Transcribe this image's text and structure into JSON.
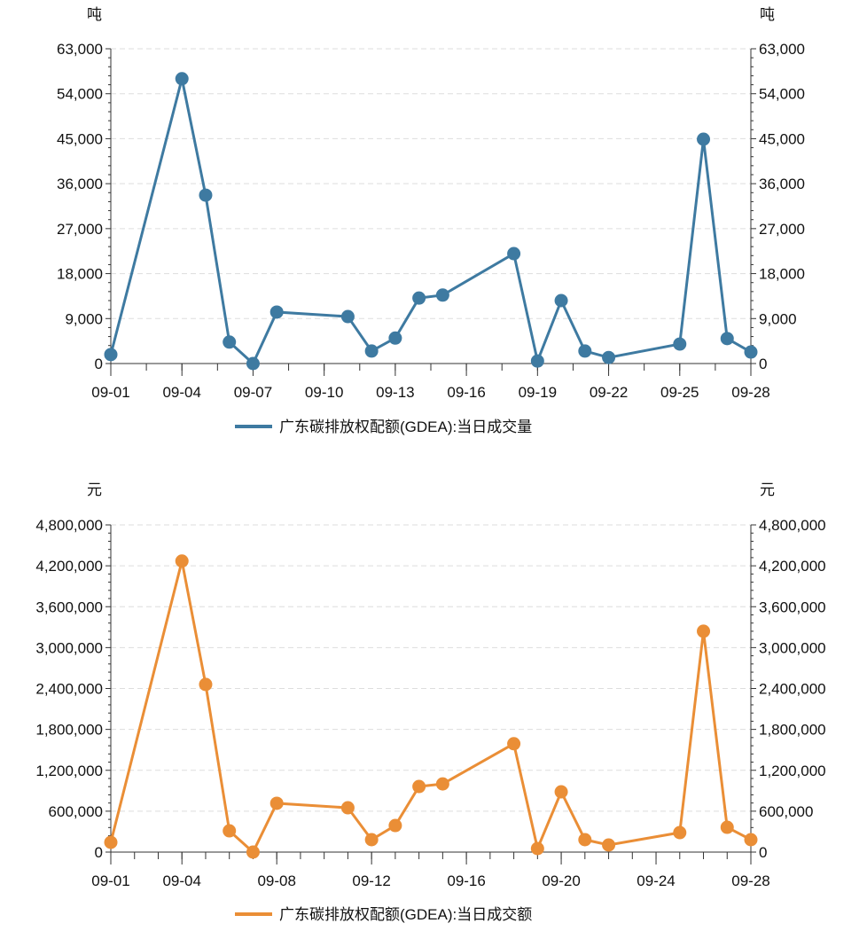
{
  "chart_data": [
    {
      "type": "line",
      "title": "",
      "unit_left": "吨",
      "unit_right": "吨",
      "legend": "广东碳排放权配额(GDEA):当日成交量",
      "legend_placement": "bottom",
      "color": "#3e7aa1",
      "ylim": [
        0,
        63000
      ],
      "yticks": [
        0,
        9000,
        18000,
        27000,
        36000,
        45000,
        54000,
        63000
      ],
      "ytick_labels": [
        "0",
        "9,000",
        "18,000",
        "27,000",
        "36,000",
        "45,000",
        "54,000",
        "63,000"
      ],
      "xtick_labels": [
        "09-01",
        "09-04",
        "09-07",
        "09-10",
        "09-13",
        "09-16",
        "09-19",
        "09-22",
        "09-25",
        "09-28"
      ],
      "xtick_days": [
        1,
        4,
        7,
        10,
        13,
        16,
        19,
        22,
        25,
        28
      ],
      "x": [
        "09-01",
        "09-04",
        "09-05",
        "09-06",
        "09-07",
        "09-08",
        "09-11",
        "09-12",
        "09-13",
        "09-14",
        "09-15",
        "09-18",
        "09-19",
        "09-20",
        "09-21",
        "09-22",
        "09-25",
        "09-26",
        "09-27",
        "09-28"
      ],
      "days": [
        1,
        4,
        5,
        6,
        7,
        8,
        11,
        12,
        13,
        14,
        15,
        18,
        19,
        20,
        21,
        22,
        25,
        26,
        27,
        28
      ],
      "values": [
        1800,
        57000,
        33700,
        4300,
        0,
        10300,
        9400,
        2500,
        5100,
        13100,
        13700,
        22000,
        500,
        12600,
        2500,
        1200,
        3900,
        44900,
        5000,
        2300
      ]
    },
    {
      "type": "line",
      "title": "",
      "unit_left": "元",
      "unit_right": "元",
      "legend": "广东碳排放权配额(GDEA):当日成交额",
      "legend_placement": "bottom",
      "color": "#ea8e36",
      "ylim": [
        0,
        4800000
      ],
      "yticks": [
        0,
        600000,
        1200000,
        1800000,
        2400000,
        3000000,
        3600000,
        4200000,
        4800000
      ],
      "ytick_labels": [
        "0",
        "600,000",
        "1,200,000",
        "1,800,000",
        "2,400,000",
        "3,000,000",
        "3,600,000",
        "4,200,000",
        "4,800,000"
      ],
      "xtick_labels": [
        "09-01",
        "09-04",
        "09-08",
        "09-12",
        "09-16",
        "09-20",
        "09-24",
        "09-28"
      ],
      "xtick_days": [
        1,
        4,
        8,
        12,
        16,
        20,
        24,
        28
      ],
      "x": [
        "09-01",
        "09-04",
        "09-05",
        "09-06",
        "09-07",
        "09-08",
        "09-11",
        "09-12",
        "09-13",
        "09-14",
        "09-15",
        "09-18",
        "09-19",
        "09-20",
        "09-21",
        "09-22",
        "09-25",
        "09-26",
        "09-27",
        "09-28"
      ],
      "days": [
        1,
        4,
        5,
        6,
        7,
        8,
        11,
        12,
        13,
        14,
        15,
        18,
        19,
        20,
        21,
        22,
        25,
        26,
        27,
        28
      ],
      "values": [
        143000,
        4270000,
        2460000,
        312000,
        0,
        716000,
        650000,
        182000,
        390000,
        962000,
        1000000,
        1590000,
        52000,
        884000,
        182000,
        104000,
        286000,
        3240000,
        364000,
        182000
      ]
    }
  ]
}
